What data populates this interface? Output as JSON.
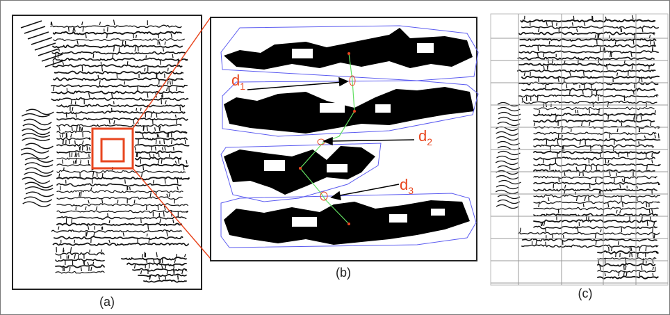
{
  "panels": {
    "a": {
      "caption": "(a)"
    },
    "b": {
      "caption": "(b)"
    },
    "c": {
      "caption": "(c)"
    }
  },
  "distances": [
    {
      "letter": "d",
      "sub": "1"
    },
    {
      "letter": "d",
      "sub": "2"
    },
    {
      "letter": "d",
      "sub": "3"
    }
  ],
  "colors": {
    "highlight": "#e8461f",
    "hull": "#5b5bf0",
    "link": "#63e063",
    "ink": "#000000",
    "grid": "#999999"
  }
}
